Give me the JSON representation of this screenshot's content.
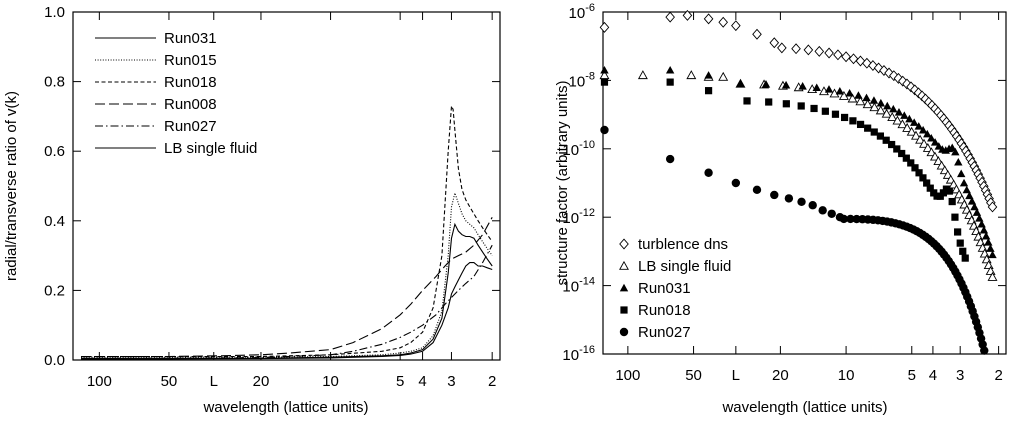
{
  "chart_data": [
    {
      "type": "line",
      "xlabel": "wavelength (lattice units)",
      "ylabel": "radial/transverse ratio of v(k)",
      "x_scale": "reciprocal",
      "xlim": [
        130,
        1.85
      ],
      "ylim": [
        0,
        1
      ],
      "x_ticks": [
        {
          "value": 100,
          "label": "100"
        },
        {
          "value": 50,
          "label": "50"
        },
        {
          "value": 32,
          "label": "L"
        },
        {
          "value": 20,
          "label": "20"
        },
        {
          "value": 10,
          "label": "10"
        },
        {
          "value": 5,
          "label": "5"
        },
        {
          "value": 4,
          "label": "4"
        },
        {
          "value": 3,
          "label": "3"
        },
        {
          "value": 2,
          "label": "2"
        }
      ],
      "y_ticks": [
        {
          "value": 0.0,
          "label": "0.0"
        },
        {
          "value": 0.2,
          "label": "0.2"
        },
        {
          "value": 0.4,
          "label": "0.4"
        },
        {
          "value": 0.6,
          "label": "0.6"
        },
        {
          "value": 0.8,
          "label": "0.8"
        },
        {
          "value": 1.0,
          "label": "1.0"
        }
      ],
      "grid": false,
      "legend_position": "top-left",
      "series": [
        {
          "name": "Run031",
          "dash": "solid",
          "x": [
            120,
            50,
            20,
            10,
            6,
            5,
            4.5,
            4,
            3.6,
            3.3,
            3.1,
            3.0,
            2.9,
            2.8,
            2.7,
            2.6,
            2.5,
            2.4,
            2.3,
            2.2,
            2.1,
            2.0
          ],
          "y": [
            0.005,
            0.005,
            0.005,
            0.008,
            0.012,
            0.015,
            0.02,
            0.03,
            0.06,
            0.12,
            0.25,
            0.35,
            0.39,
            0.37,
            0.36,
            0.355,
            0.355,
            0.35,
            0.33,
            0.31,
            0.29,
            0.27
          ]
        },
        {
          "name": "Run015",
          "dash": "dotted",
          "x": [
            120,
            50,
            20,
            10,
            6,
            5,
            4.5,
            4,
            3.6,
            3.3,
            3.1,
            3.0,
            2.9,
            2.8,
            2.7,
            2.6,
            2.5,
            2.4,
            2.3,
            2.2,
            2.1,
            2.0
          ],
          "y": [
            0.008,
            0.008,
            0.008,
            0.01,
            0.015,
            0.02,
            0.025,
            0.035,
            0.07,
            0.14,
            0.3,
            0.44,
            0.48,
            0.45,
            0.42,
            0.4,
            0.39,
            0.38,
            0.36,
            0.34,
            0.32,
            0.3
          ]
        },
        {
          "name": "Run018",
          "dash": "short-dash",
          "x": [
            120,
            50,
            20,
            10,
            6,
            5,
            4.5,
            4,
            3.6,
            3.3,
            3.1,
            3.0,
            2.95,
            2.9,
            2.8,
            2.7,
            2.6,
            2.5,
            2.4,
            2.3,
            2.2,
            2.1,
            2.0
          ],
          "y": [
            0.01,
            0.01,
            0.01,
            0.015,
            0.025,
            0.035,
            0.05,
            0.08,
            0.15,
            0.3,
            0.6,
            0.73,
            0.72,
            0.66,
            0.55,
            0.49,
            0.46,
            0.44,
            0.42,
            0.4,
            0.38,
            0.36,
            0.34
          ]
        },
        {
          "name": "Run008",
          "dash": "long-dash",
          "x": [
            120,
            50,
            30,
            20,
            15,
            10,
            8,
            6,
            5,
            4.5,
            4,
            3.5,
            3.2,
            3.0,
            2.8,
            2.6,
            2.4,
            2.2,
            2.0
          ],
          "y": [
            0.01,
            0.01,
            0.012,
            0.015,
            0.02,
            0.03,
            0.05,
            0.09,
            0.13,
            0.16,
            0.2,
            0.24,
            0.27,
            0.29,
            0.3,
            0.31,
            0.33,
            0.36,
            0.41
          ]
        },
        {
          "name": "Run027",
          "dash": "dash-dot",
          "x": [
            120,
            50,
            20,
            10,
            8,
            6,
            5,
            4.5,
            4,
            3.5,
            3.2,
            3.0,
            2.8,
            2.6,
            2.4,
            2.2,
            2.0
          ],
          "y": [
            0.005,
            0.005,
            0.007,
            0.015,
            0.025,
            0.045,
            0.065,
            0.08,
            0.1,
            0.13,
            0.16,
            0.18,
            0.2,
            0.22,
            0.24,
            0.28,
            0.33
          ]
        },
        {
          "name": "LB single fluid",
          "dash": "solid",
          "x": [
            120,
            50,
            20,
            10,
            6,
            5,
            4.5,
            4,
            3.6,
            3.3,
            3.1,
            3.0,
            2.9,
            2.8,
            2.7,
            2.6,
            2.5,
            2.4,
            2.3,
            2.2,
            2.1,
            2.0
          ],
          "y": [
            0.003,
            0.003,
            0.004,
            0.006,
            0.01,
            0.013,
            0.017,
            0.025,
            0.05,
            0.1,
            0.15,
            0.19,
            0.21,
            0.23,
            0.25,
            0.27,
            0.28,
            0.28,
            0.27,
            0.27,
            0.265,
            0.26
          ]
        }
      ]
    },
    {
      "type": "scatter",
      "xlabel": "wavelength (lattice units)",
      "ylabel": "structure factor (arbitrary units)",
      "x_scale": "reciprocal",
      "y_scale": "log",
      "xlim": [
        130,
        1.85
      ],
      "ylim": [
        1e-16,
        1e-06
      ],
      "x_ticks": [
        {
          "value": 100,
          "label": "100"
        },
        {
          "value": 50,
          "label": "50"
        },
        {
          "value": 32,
          "label": "L"
        },
        {
          "value": 20,
          "label": "20"
        },
        {
          "value": 10,
          "label": "10"
        },
        {
          "value": 5,
          "label": "5"
        },
        {
          "value": 4,
          "label": "4"
        },
        {
          "value": 3,
          "label": "3"
        },
        {
          "value": 2,
          "label": "2"
        }
      ],
      "y_ticks": [
        {
          "value": -16,
          "label_base": "10",
          "label_exp": "-16"
        },
        {
          "value": -14,
          "label_base": "10",
          "label_exp": "-14"
        },
        {
          "value": -12,
          "label_base": "10",
          "label_exp": "-12"
        },
        {
          "value": -10,
          "label_base": "10",
          "label_exp": "-10"
        },
        {
          "value": -8,
          "label_base": "10",
          "label_exp": "-8"
        },
        {
          "value": -6,
          "label_base": "10",
          "label_exp": "-6"
        }
      ],
      "grid": false,
      "legend_position": "bottom-left",
      "series": [
        {
          "name": "turblence dns",
          "marker": "diamond-open",
          "k_points": [
            [
              1,
              -6.45
            ],
            [
              2,
              -6.15
            ],
            [
              2.4,
              -6.1
            ],
            [
              3,
              -6.2
            ],
            [
              3.5,
              -6.3
            ],
            [
              4,
              -6.4
            ],
            [
              5,
              -6.65
            ],
            [
              6,
              -6.9
            ]
          ],
          "k_tail": {
            "from": 6.5,
            "to": 60,
            "count": 52,
            "y_from": -7.05,
            "y_to": -11.7,
            "curve": 1.35
          }
        },
        {
          "name": "LB single fluid",
          "marker": "triangle-open",
          "k_points": [
            [
              1,
              -7.85
            ],
            [
              1.5,
              -7.85
            ],
            [
              2.5,
              -7.85
            ],
            [
              3,
              -7.9
            ],
            [
              3.5,
              -7.9
            ]
          ],
          "k_tail": {
            "from": 4.2,
            "to": 60,
            "count": 48,
            "y_from": -8.1,
            "y_to": -13.75,
            "curve": 1.45
          }
        },
        {
          "name": "Run031",
          "marker": "triangle-filled",
          "k_points": [
            [
              1,
              -7.7
            ],
            [
              2,
              -7.7
            ],
            [
              3,
              -7.85
            ]
          ],
          "k_tail": {
            "from": 4.2,
            "to": 60,
            "count": 44,
            "y_from": -8.1,
            "y_to": -13.1,
            "curve": 1.6,
            "bump_at": 40,
            "bump_depth": 0.6
          }
        },
        {
          "name": "Run018",
          "marker": "square-filled",
          "k_points": [
            [
              1,
              -8.05
            ],
            [
              2,
              -8.05
            ],
            [
              3,
              -8.3
            ]
          ],
          "k_tail": {
            "from": 4.5,
            "to": 45,
            "count": 36,
            "y_from": -8.6,
            "y_to": -13.2,
            "curve": 1.4,
            "bump_at": 38,
            "bump_depth": 1.0
          }
        },
        {
          "name": "Run027",
          "marker": "circle-filled",
          "k_points": [
            [
              1,
              -9.45
            ],
            [
              2,
              -10.3
            ],
            [
              3,
              -10.7
            ],
            [
              4,
              -11.0
            ],
            [
              5,
              -11.2
            ],
            [
              6,
              -11.35
            ],
            [
              7,
              -11.45
            ],
            [
              8,
              -11.55
            ],
            [
              9,
              -11.65
            ],
            [
              10,
              -11.8
            ],
            [
              11,
              -11.9
            ],
            [
              12,
              -12.0
            ]
          ],
          "k_tail": {
            "from": 12.5,
            "to": 55,
            "count": 48,
            "y_from": -12.05,
            "y_to": -15.9,
            "curve": 2.2
          }
        }
      ]
    }
  ]
}
